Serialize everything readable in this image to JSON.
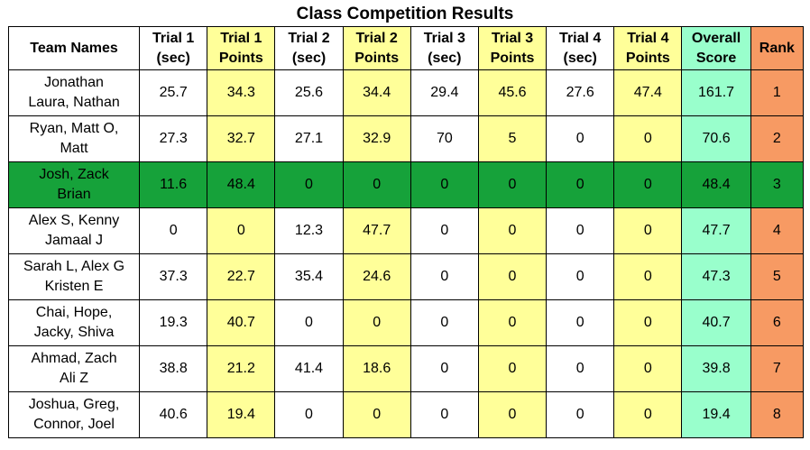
{
  "title": "Class Competition Results",
  "colors": {
    "points_bg": "#ffff99",
    "overall_bg": "#99ffcc",
    "rank_bg": "#f79a63",
    "highlight_row_bg": "#16a23a"
  },
  "headers": [
    [
      "Team Names"
    ],
    [
      "Trial 1",
      "(sec)"
    ],
    [
      "Trial 1",
      "Points"
    ],
    [
      "Trial 2",
      "(sec)"
    ],
    [
      "Trial 2",
      "Points"
    ],
    [
      "Trial 3",
      "(sec)"
    ],
    [
      "Trial 3",
      "Points"
    ],
    [
      "Trial 4",
      "(sec)"
    ],
    [
      "Trial 4",
      "Points"
    ],
    [
      "Overall",
      "Score"
    ],
    [
      "Rank"
    ]
  ],
  "rows": [
    {
      "names": [
        "Jonathan",
        "Laura, Nathan"
      ],
      "values": [
        "25.7",
        "34.3",
        "25.6",
        "34.4",
        "29.4",
        "45.6",
        "27.6",
        "47.4",
        "161.7",
        "1"
      ]
    },
    {
      "names": [
        "Ryan, Matt O,",
        "Matt"
      ],
      "values": [
        "27.3",
        "32.7",
        "27.1",
        "32.9",
        "70",
        "5",
        "0",
        "0",
        "70.6",
        "2"
      ]
    },
    {
      "names": [
        "Josh, Zack",
        "Brian"
      ],
      "values": [
        "11.6",
        "48.4",
        "0",
        "0",
        "0",
        "0",
        "0",
        "0",
        "48.4",
        "3"
      ],
      "highlight": true
    },
    {
      "names": [
        "Alex S, Kenny",
        "Jamaal J"
      ],
      "values": [
        "0",
        "0",
        "12.3",
        "47.7",
        "0",
        "0",
        "0",
        "0",
        "47.7",
        "4"
      ]
    },
    {
      "names": [
        "Sarah L, Alex G",
        "Kristen E"
      ],
      "values": [
        "37.3",
        "22.7",
        "35.4",
        "24.6",
        "0",
        "0",
        "0",
        "0",
        "47.3",
        "5"
      ]
    },
    {
      "names": [
        "Chai, Hope,",
        "Jacky, Shiva"
      ],
      "values": [
        "19.3",
        "40.7",
        "0",
        "0",
        "0",
        "0",
        "0",
        "0",
        "40.7",
        "6"
      ]
    },
    {
      "names": [
        "Ahmad, Zach",
        "Ali Z"
      ],
      "values": [
        "38.8",
        "21.2",
        "41.4",
        "18.6",
        "0",
        "0",
        "0",
        "0",
        "39.8",
        "7"
      ]
    },
    {
      "names": [
        "Joshua, Greg,",
        "Connor, Joel"
      ],
      "values": [
        "40.6",
        "19.4",
        "0",
        "0",
        "0",
        "0",
        "0",
        "0",
        "19.4",
        "8"
      ]
    }
  ]
}
